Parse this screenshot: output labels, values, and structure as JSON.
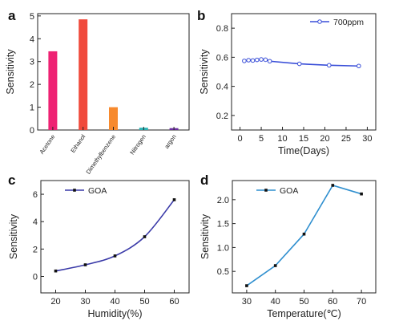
{
  "chart_data": [
    {
      "panel": "a",
      "type": "bar",
      "categories": [
        "Acetone",
        "Ethanol",
        "Dimethylbenzene",
        "Nitrogen",
        "argon"
      ],
      "values": [
        3.45,
        4.85,
        1.0,
        0.1,
        0.08
      ],
      "colors": [
        "#ee2273",
        "#f04a3c",
        "#f78a2e",
        "#2bb3b5",
        "#6b2ea0"
      ],
      "xlabel": "",
      "ylabel": "Sensitivity",
      "ylim": [
        0,
        5.1
      ],
      "yticks": [
        0,
        1,
        2,
        3,
        4,
        5
      ],
      "grid": false
    },
    {
      "panel": "b",
      "type": "line",
      "series": [
        {
          "name": "700ppm",
          "color": "#3a4fd8",
          "x": [
            1,
            2,
            3,
            4,
            5,
            6,
            7,
            14,
            21,
            28
          ],
          "y": [
            0.575,
            0.58,
            0.578,
            0.582,
            0.585,
            0.583,
            0.573,
            0.555,
            0.545,
            0.54
          ]
        }
      ],
      "xlabel": "Time(Days)",
      "ylabel": "Sensitivity",
      "xlim": [
        -2,
        32
      ],
      "ylim": [
        0.1,
        0.9
      ],
      "xticks": [
        0,
        5,
        10,
        15,
        20,
        25,
        30
      ],
      "yticks": [
        0.2,
        0.4,
        0.6,
        0.8
      ],
      "legend": "top-right",
      "grid": false
    },
    {
      "panel": "c",
      "type": "line",
      "series": [
        {
          "name": "GOA",
          "color": "#3a3aa8",
          "x": [
            20,
            30,
            40,
            50,
            60
          ],
          "y": [
            0.4,
            0.85,
            1.5,
            2.9,
            5.6
          ]
        }
      ],
      "xlabel": "Humidity(%)",
      "ylabel": "Sensitivity",
      "xlim": [
        15,
        65
      ],
      "ylim": [
        -1.2,
        7
      ],
      "xticks": [
        20,
        30,
        40,
        50,
        60
      ],
      "yticks": [
        0,
        2,
        4,
        6
      ],
      "legend": "top-left",
      "grid": false
    },
    {
      "panel": "d",
      "type": "line",
      "series": [
        {
          "name": "GOA",
          "color": "#2f8fcf",
          "x": [
            30,
            40,
            50,
            60,
            70
          ],
          "y": [
            0.2,
            0.62,
            1.28,
            2.3,
            2.12
          ]
        }
      ],
      "xlabel": "Temperature(℃)",
      "ylabel": "Sensitivity",
      "xlim": [
        25,
        75
      ],
      "ylim": [
        0.05,
        2.4
      ],
      "xticks": [
        30,
        40,
        50,
        60,
        70
      ],
      "yticks": [
        0.5,
        1.0,
        1.5,
        2.0
      ],
      "ytick_labels": [
        "0.5",
        "1.0",
        "1.5",
        "2.0"
      ],
      "legend": "top-left",
      "grid": false
    }
  ]
}
